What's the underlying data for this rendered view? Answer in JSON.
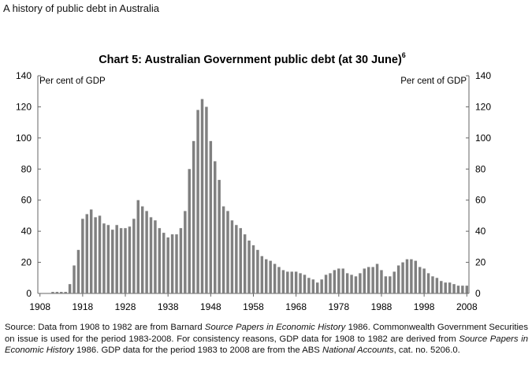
{
  "page_title": "A history of public debt in Australia",
  "source_note": {
    "parts": [
      {
        "text": "Source: Data from 1908 to 1982 are from Barnard ",
        "italic": false
      },
      {
        "text": "Source Papers in Economic History",
        "italic": true
      },
      {
        "text": " 1986. Commonwealth Government Securities on issue is used for the period 1983-2008. For consistency reasons, GDP data for 1908 to 1982 are derived from ",
        "italic": false
      },
      {
        "text": "Source Papers in Economic History",
        "italic": true
      },
      {
        "text": " 1986. GDP data for the period 1983 to 2008 are from the ABS ",
        "italic": false
      },
      {
        "text": "National Accounts",
        "italic": true
      },
      {
        "text": ", cat. no. 5206.0.",
        "italic": false
      }
    ]
  },
  "chart_data": {
    "type": "bar",
    "title": "Chart 5: Australian Government public debt (at 30 June)",
    "title_superscript": "6",
    "ylabel_left": "Per cent of GDP",
    "ylabel_right": "Per cent of GDP",
    "ylim": [
      0,
      140
    ],
    "yticks": [
      0,
      20,
      40,
      60,
      80,
      100,
      120,
      140
    ],
    "xticks": [
      1908,
      1918,
      1928,
      1938,
      1948,
      1958,
      1968,
      1978,
      1988,
      1998,
      2008
    ],
    "grid": false,
    "bar_color": "#808080",
    "x_start": 1908,
    "values": [
      0,
      0,
      0,
      1,
      1,
      1,
      1,
      6,
      18,
      28,
      48,
      51,
      54,
      49,
      50,
      45,
      44,
      41,
      44,
      42,
      42,
      43,
      48,
      60,
      56,
      53,
      49,
      47,
      42,
      39,
      36,
      38,
      38,
      42,
      53,
      80,
      98,
      118,
      125,
      120,
      98,
      85,
      73,
      56,
      53,
      47,
      44,
      42,
      38,
      34,
      31,
      28,
      24,
      22,
      21,
      19,
      17,
      15,
      14,
      14,
      14,
      13,
      12,
      10,
      9,
      7,
      9,
      12,
      13,
      15,
      16,
      16,
      13,
      12,
      11,
      13,
      16,
      17,
      17,
      19,
      15,
      11,
      11,
      14,
      18,
      20,
      22,
      22,
      21,
      17,
      16,
      13,
      11,
      10,
      8,
      7,
      7,
      6,
      5,
      5,
      5
    ]
  }
}
